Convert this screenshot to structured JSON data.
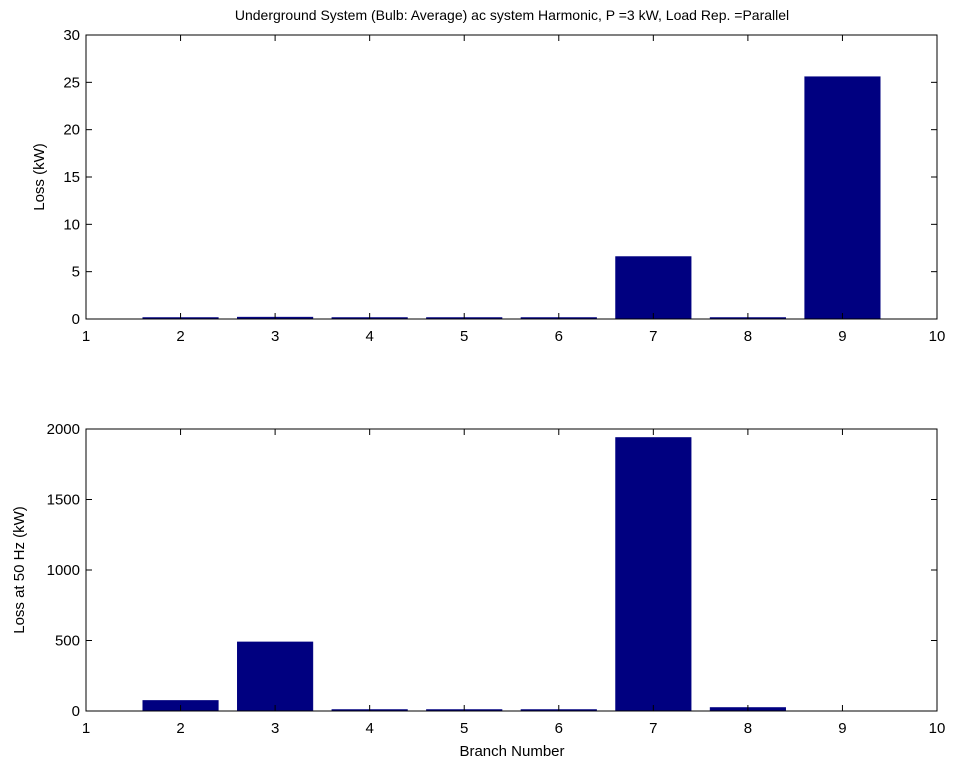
{
  "figure": {
    "title": "Underground System (Bulb: Average) ac system Harmonic, P =3 kW, Load Rep. =Parallel",
    "bar_color": "#000080"
  },
  "chart_data": [
    {
      "type": "bar",
      "title": "Underground System (Bulb: Average) ac system Harmonic, P =3 kW, Load Rep. =Parallel",
      "xlabel": "",
      "ylabel": "Loss (kW)",
      "x": [
        2,
        3,
        4,
        5,
        6,
        7,
        8,
        9
      ],
      "values": [
        0.05,
        0.2,
        0.02,
        0.01,
        0.02,
        6.6,
        0.1,
        25.6
      ],
      "xlim": [
        1,
        10
      ],
      "ylim": [
        0,
        30
      ],
      "xticks": [
        1,
        2,
        3,
        4,
        5,
        6,
        7,
        8,
        9,
        10
      ],
      "yticks": [
        0,
        5,
        10,
        15,
        20,
        25,
        30
      ],
      "grid": false
    },
    {
      "type": "bar",
      "title": "",
      "xlabel": "Branch Number",
      "ylabel": "Loss at 50 Hz (kW)",
      "x": [
        2,
        3,
        4,
        5,
        6,
        7,
        8,
        9
      ],
      "values": [
        75,
        490,
        3,
        2,
        3,
        1940,
        25,
        0
      ],
      "xlim": [
        1,
        10
      ],
      "ylim": [
        0,
        2000
      ],
      "xticks": [
        1,
        2,
        3,
        4,
        5,
        6,
        7,
        8,
        9,
        10
      ],
      "yticks": [
        0,
        500,
        1000,
        1500,
        2000
      ],
      "grid": false
    }
  ]
}
